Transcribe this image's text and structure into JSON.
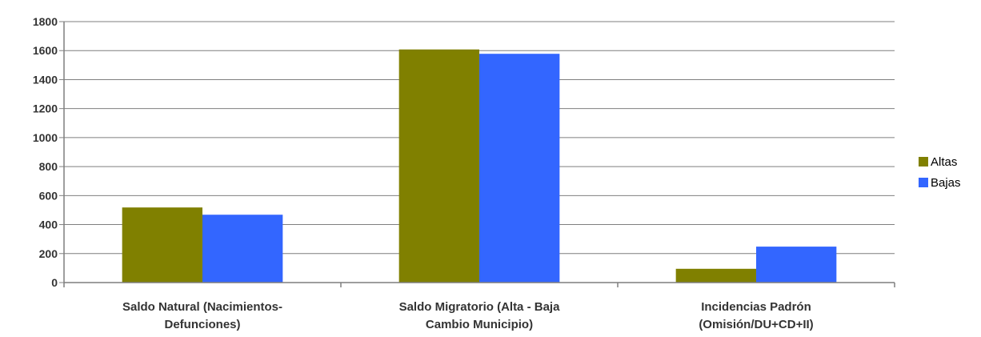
{
  "chart_data": {
    "type": "bar",
    "categories": [
      [
        "Saldo Natural (Nacimientos-",
        "Defunciones)"
      ],
      [
        "Saldo Migratorio (Alta - Baja",
        "Cambio Municipio)"
      ],
      [
        "Incidencias Padrón",
        "(Omisión/DU+CD+II)"
      ]
    ],
    "series": [
      {
        "name": "Altas",
        "values": [
          518,
          1608,
          95
        ],
        "color": "#808000"
      },
      {
        "name": "Bajas",
        "values": [
          468,
          1578,
          248
        ],
        "color": "#3366FF"
      }
    ],
    "ylim": [
      0,
      1800
    ],
    "yticks": [
      0,
      200,
      400,
      600,
      800,
      1000,
      1200,
      1400,
      1600,
      1800
    ],
    "grid": true,
    "legend_position": "right"
  }
}
